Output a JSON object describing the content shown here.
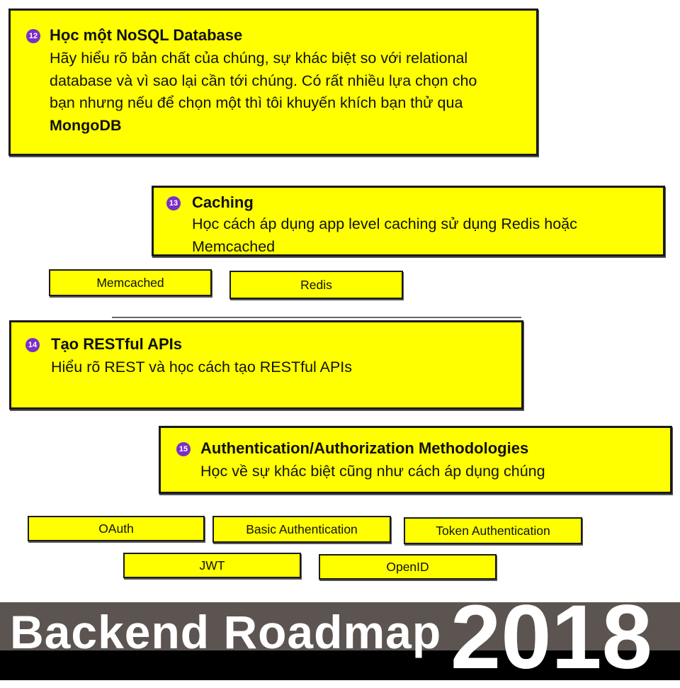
{
  "cards": [
    {
      "number": "12",
      "title": "Học một NoSQL Database",
      "desc_plain": "Hãy hiểu rõ bản chất của chúng, sự khác biệt so với relational database và vì sao lại cần tới chúng. Có rất nhiều lựa chọn cho bạn nhưng nếu để chọn một thì tôi khuyến khích bạn thử qua ",
      "desc_bold": "MongoDB"
    },
    {
      "number": "13",
      "title": "Caching",
      "desc": "Học cách áp dụng app level caching sử dụng Redis hoặc Memcached"
    },
    {
      "number": "14",
      "title": "Tạo RESTful APIs",
      "desc": "Hiểu rõ REST và học cách tạo RESTful APIs"
    },
    {
      "number": "15",
      "title": "Authentication/Authorization Methodologies",
      "desc": "Học về sự khác biệt cũng như cách áp dụng chúng"
    }
  ],
  "caching_tags": [
    "Memcached",
    "Redis"
  ],
  "auth_tags": [
    "OAuth",
    "Basic Authentication",
    "Token Authentication",
    "JWT",
    "OpenID"
  ],
  "footer": {
    "title": "Backend Roadmap",
    "year": "2018"
  },
  "colors": {
    "card_fill": "#ffff00",
    "badge": "#7b2fc9",
    "footer_band": "#5c5450"
  }
}
